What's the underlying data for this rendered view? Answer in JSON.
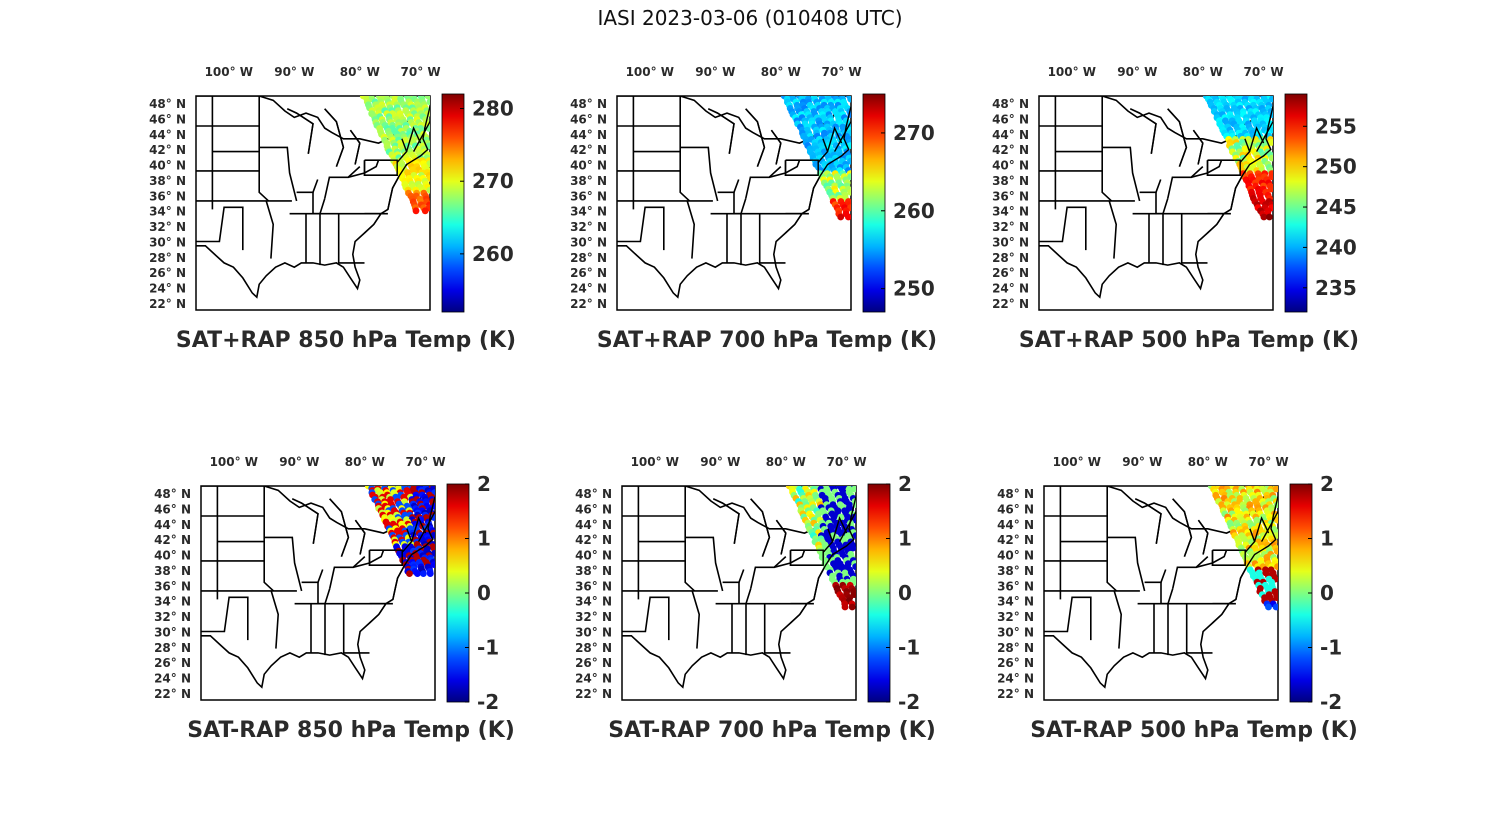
{
  "title": "IASI 2023-03-06 (010408 UTC)",
  "lon_labels": [
    "100° W",
    "90° W",
    "80° W",
    "70° W"
  ],
  "lat_labels": [
    "48° N",
    "46° N",
    "44° N",
    "42° N",
    "40° N",
    "38° N",
    "36° N",
    "34° N",
    "32° N",
    "30° N",
    "28° N",
    "26° N",
    "24° N",
    "22° N"
  ],
  "colormap": "jet",
  "panels": [
    {
      "title": "SAT+RAP 850 hPa Temp (K)",
      "clim": [
        252,
        282
      ],
      "ticks": [
        "260",
        "270",
        "280"
      ],
      "tickvals": [
        260,
        270,
        280
      ],
      "pattern": "warm-south",
      "south_extent": 0.55
    },
    {
      "title": "SAT+RAP 700 hPa Temp (K)",
      "clim": [
        247,
        275
      ],
      "ticks": [
        "250",
        "260",
        "270"
      ],
      "tickvals": [
        250,
        260,
        270
      ],
      "pattern": "warm-south-strong",
      "south_extent": 0.58
    },
    {
      "title": "SAT+RAP 500 hPa Temp (K)",
      "clim": [
        232,
        259
      ],
      "ticks": [
        "235",
        "240",
        "245",
        "250",
        "255"
      ],
      "tickvals": [
        235,
        240,
        245,
        250,
        255
      ],
      "pattern": "warm-south-mid",
      "south_extent": 0.58
    },
    {
      "title": "SAT-RAP 850 hPa Temp (K)",
      "clim": [
        -2,
        2
      ],
      "ticks": [
        "2",
        "1",
        "0",
        "-1",
        "-2"
      ],
      "tickvals": [
        2,
        1,
        0,
        -1,
        -2
      ],
      "pattern": "diff-850",
      "south_extent": 0.42
    },
    {
      "title": "SAT-RAP 700 hPa Temp (K)",
      "clim": [
        -2,
        2
      ],
      "ticks": [
        "2",
        "1",
        "0",
        "-1",
        "-2"
      ],
      "tickvals": [
        2,
        1,
        0,
        -1,
        -2
      ],
      "pattern": "diff-700",
      "south_extent": 0.58
    },
    {
      "title": "SAT-RAP 500 hPa Temp (K)",
      "clim": [
        -2,
        2
      ],
      "ticks": [
        "2",
        "1",
        "0",
        "-1",
        "-2"
      ],
      "tickvals": [
        2,
        1,
        0,
        -1,
        -2
      ],
      "pattern": "diff-500",
      "south_extent": 0.58
    }
  ]
}
